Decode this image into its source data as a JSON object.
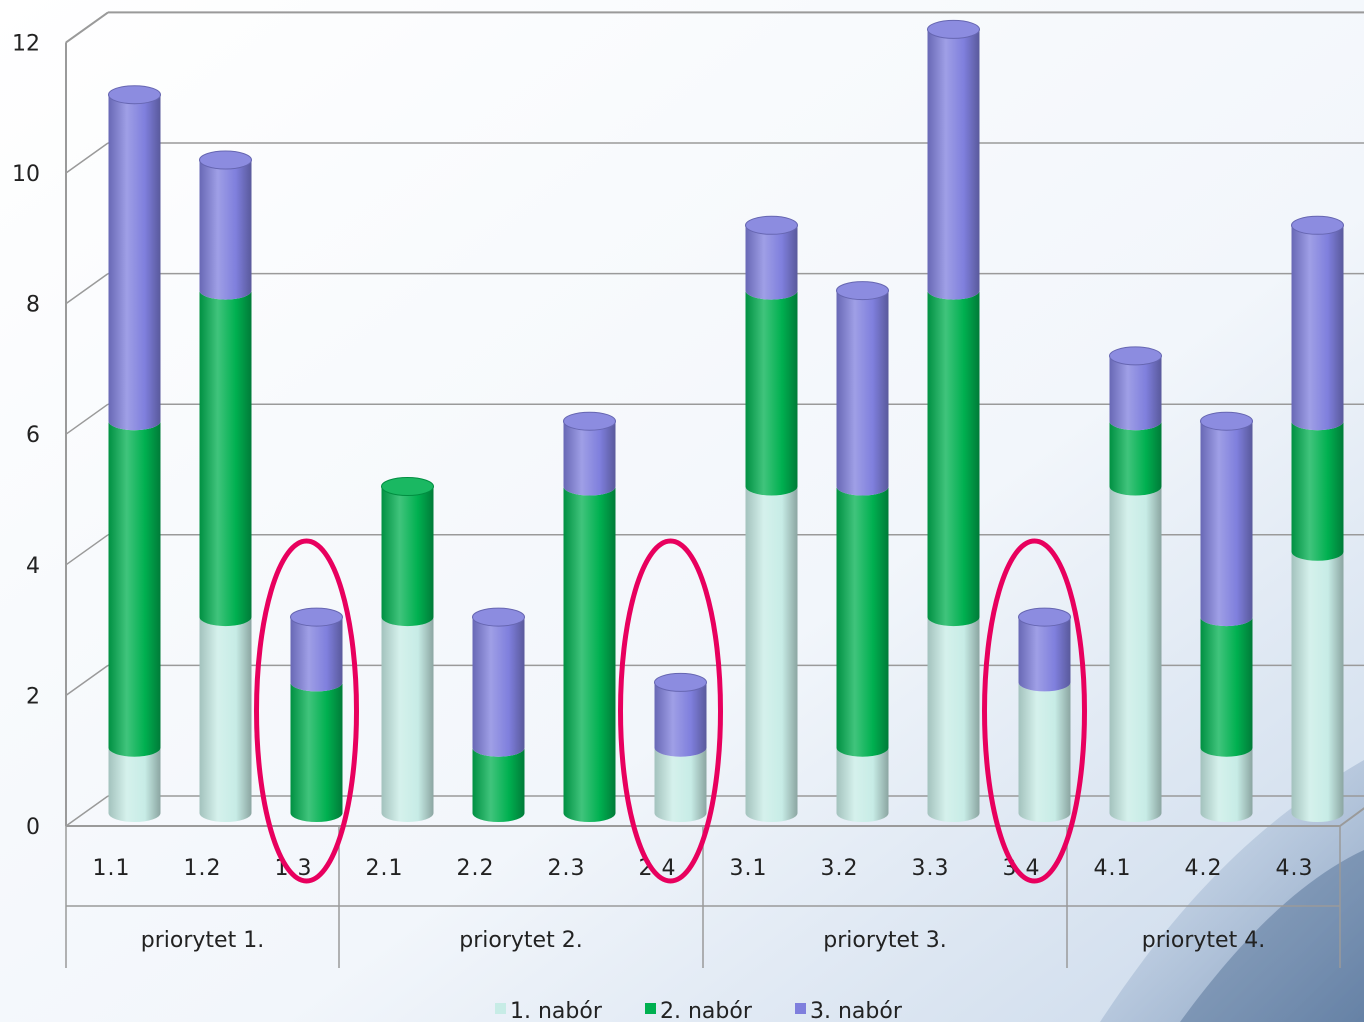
{
  "chart_data": {
    "type": "bar",
    "stacked": true,
    "style": "3d-cylinder",
    "title": "",
    "xlabel": "",
    "ylabel": "",
    "ylim": [
      0,
      12
    ],
    "yticks": [
      0,
      2,
      4,
      6,
      8,
      10,
      12
    ],
    "grid": true,
    "legend_position": "bottom",
    "categories": [
      "1.1",
      "1.2",
      "1.3",
      "2.1",
      "2.2",
      "2.3",
      "2.4",
      "3.1",
      "3.2",
      "3.3",
      "3.4",
      "4.1",
      "4.2",
      "4.3"
    ],
    "groups": [
      {
        "label": "priorytet 1.",
        "categories": [
          "1.1",
          "1.2",
          "1.3"
        ]
      },
      {
        "label": "priorytet 2.",
        "categories": [
          "2.1",
          "2.2",
          "2.3",
          "2.4"
        ]
      },
      {
        "label": "priorytet 3.",
        "categories": [
          "3.1",
          "3.2",
          "3.3",
          "3.4"
        ]
      },
      {
        "label": "priorytet 4.",
        "categories": [
          "4.1",
          "4.2",
          "4.3"
        ]
      }
    ],
    "series": [
      {
        "name": "1. nabór",
        "color": "#c7ece6",
        "values": [
          1,
          3,
          0,
          3,
          0,
          0,
          1,
          5,
          1,
          3,
          2,
          5,
          1,
          4
        ]
      },
      {
        "name": "2. nabór",
        "color": "#00b050",
        "values": [
          5,
          5,
          2,
          2,
          1,
          5,
          0,
          3,
          4,
          5,
          0,
          1,
          2,
          2
        ]
      },
      {
        "name": "3. nabór",
        "color": "#7f7fdd",
        "values": [
          5,
          2,
          1,
          0,
          2,
          1,
          1,
          1,
          3,
          4,
          1,
          1,
          3,
          3
        ]
      }
    ],
    "highlighted_categories": [
      "1.3",
      "2.4",
      "3.4"
    ],
    "highlight_color": "#e8005e"
  }
}
